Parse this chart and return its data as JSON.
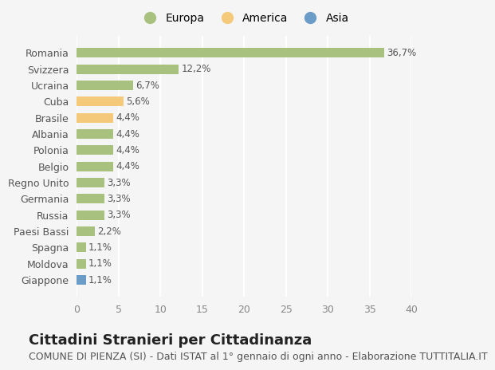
{
  "countries": [
    "Giappone",
    "Moldova",
    "Spagna",
    "Paesi Bassi",
    "Russia",
    "Germania",
    "Regno Unito",
    "Belgio",
    "Polonia",
    "Albania",
    "Brasile",
    "Cuba",
    "Ucraina",
    "Svizzera",
    "Romania"
  ],
  "values": [
    1.1,
    1.1,
    1.1,
    2.2,
    3.3,
    3.3,
    3.3,
    4.4,
    4.4,
    4.4,
    4.4,
    5.6,
    6.7,
    12.2,
    36.7
  ],
  "labels": [
    "1,1%",
    "1,1%",
    "1,1%",
    "2,2%",
    "3,3%",
    "3,3%",
    "3,3%",
    "4,4%",
    "4,4%",
    "4,4%",
    "4,4%",
    "5,6%",
    "6,7%",
    "12,2%",
    "36,7%"
  ],
  "colors": [
    "#6b9bc7",
    "#a8c17e",
    "#a8c17e",
    "#a8c17e",
    "#a8c17e",
    "#a8c17e",
    "#a8c17e",
    "#a8c17e",
    "#a8c17e",
    "#a8c17e",
    "#f5c97a",
    "#f5c97a",
    "#a8c17e",
    "#a8c17e",
    "#a8c17e"
  ],
  "legend_names": [
    "Europa",
    "America",
    "Asia"
  ],
  "legend_colors": [
    "#a8c17e",
    "#f5c97a",
    "#6b9bc7"
  ],
  "title": "Cittadini Stranieri per Cittadinanza",
  "subtitle": "COMUNE DI PIENZA (SI) - Dati ISTAT al 1° gennaio di ogni anno - Elaborazione TUTTITALIA.IT",
  "xlim": [
    0,
    40
  ],
  "xticks": [
    0,
    5,
    10,
    15,
    20,
    25,
    30,
    35,
    40
  ],
  "background_color": "#f5f5f5",
  "bar_height": 0.6,
  "grid_color": "#ffffff",
  "title_fontsize": 13,
  "subtitle_fontsize": 9,
  "label_fontsize": 8.5,
  "tick_fontsize": 9,
  "legend_fontsize": 10
}
